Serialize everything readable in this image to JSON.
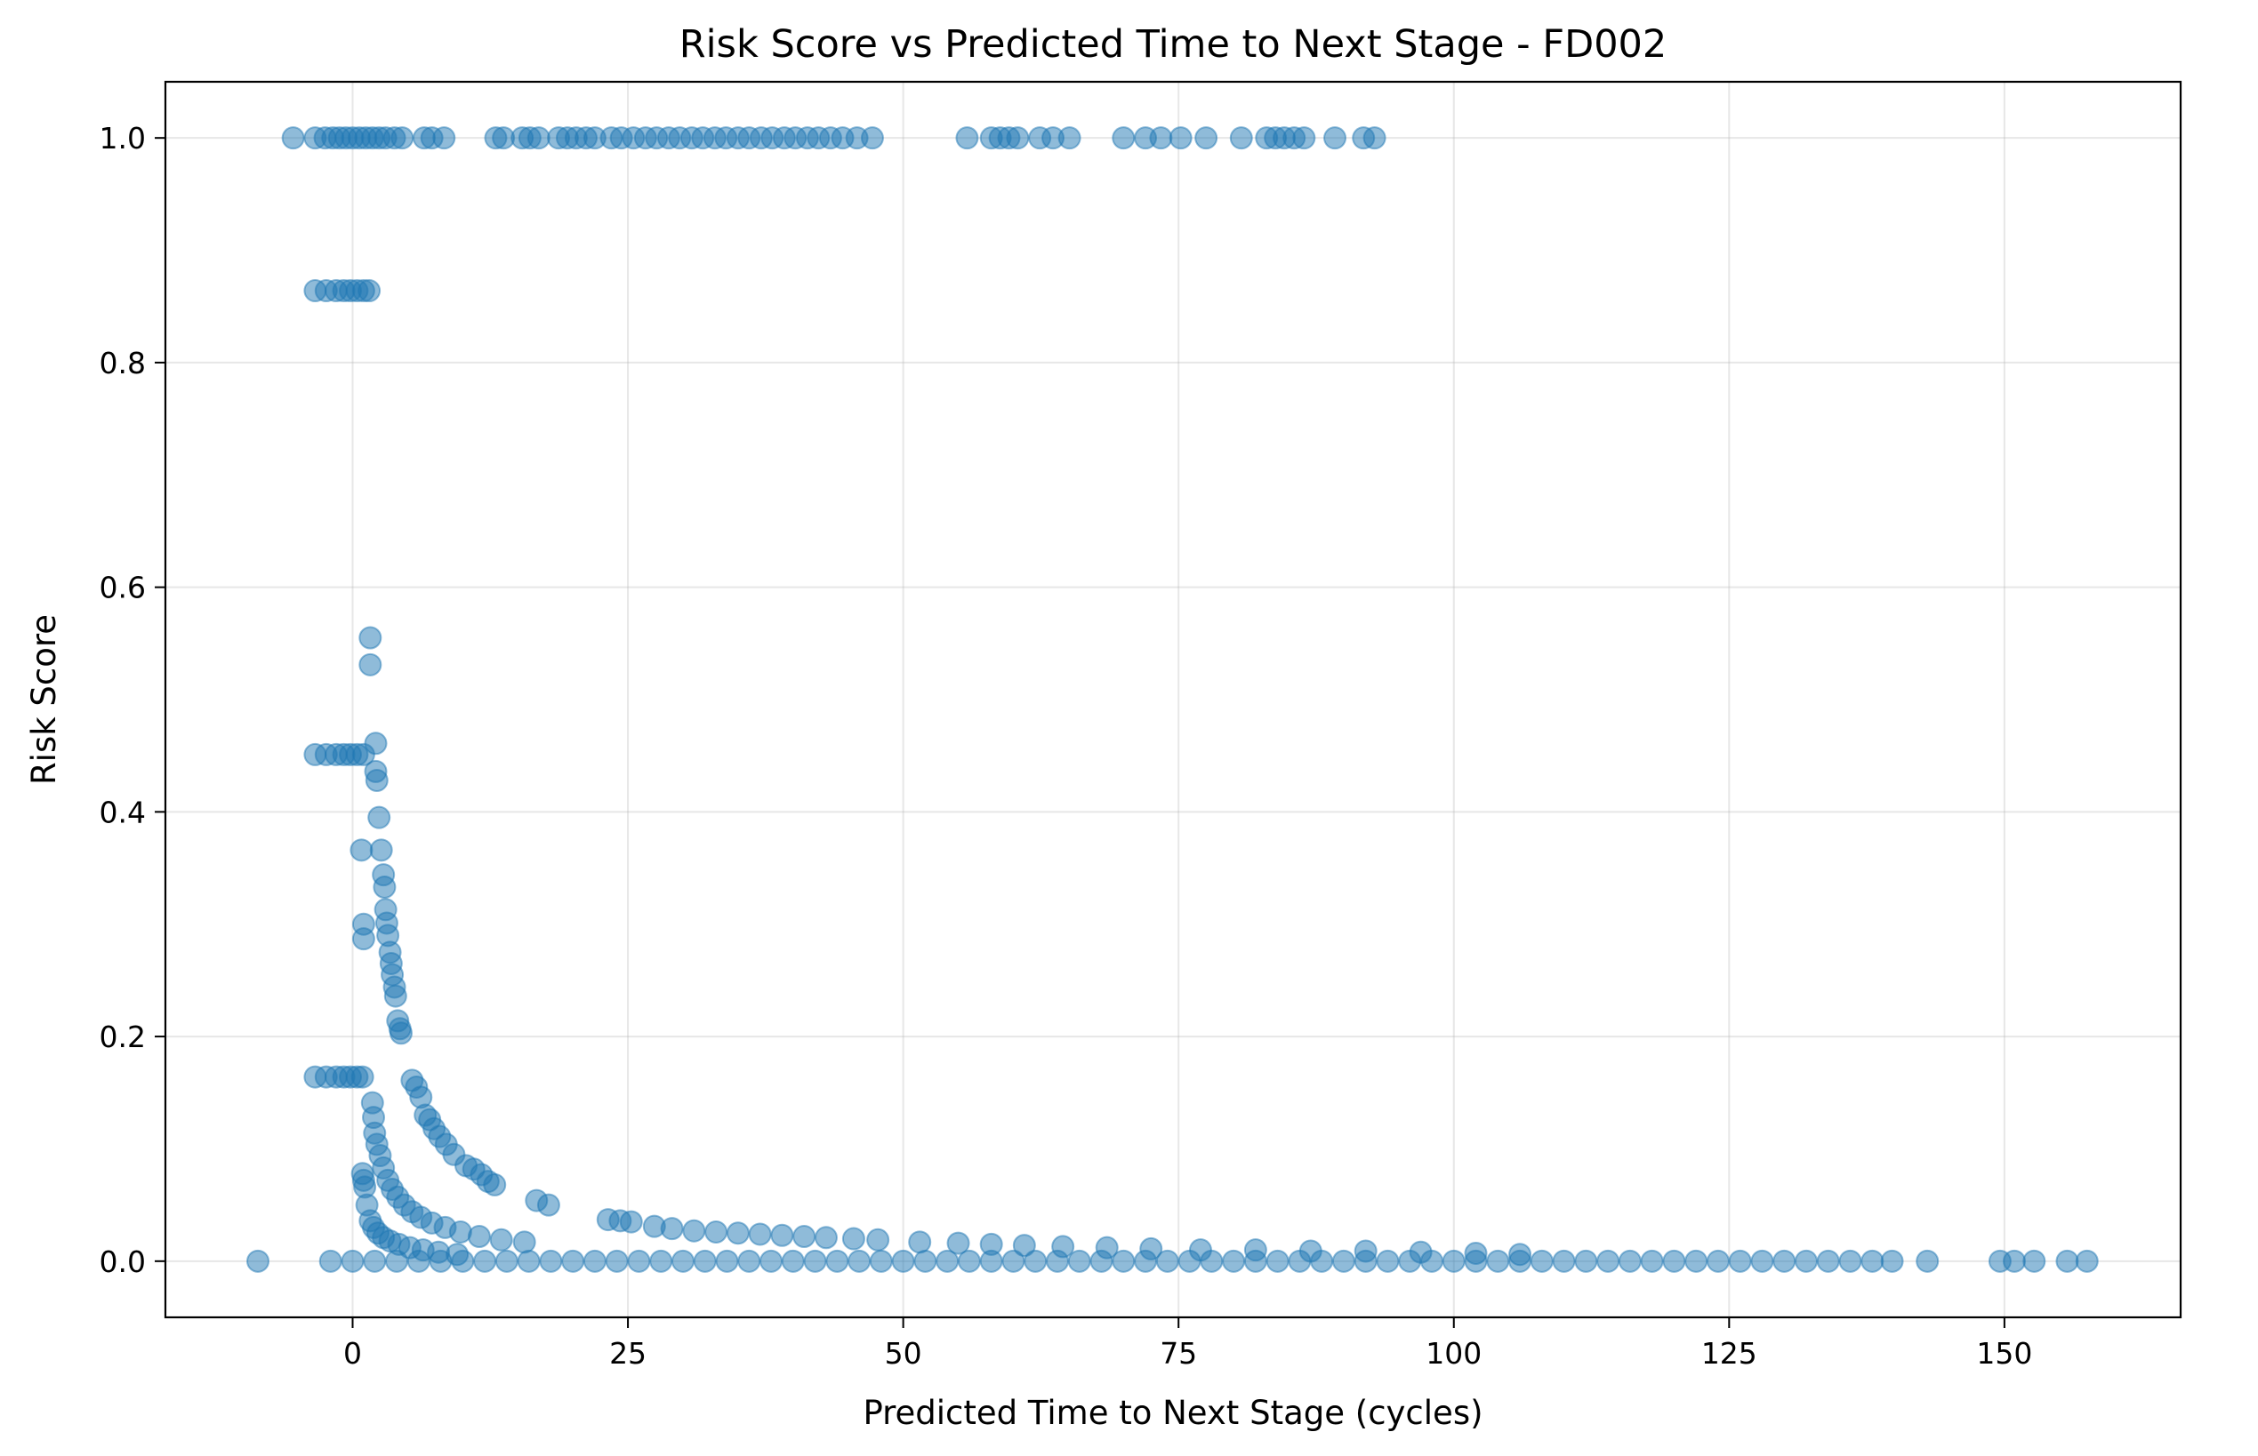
{
  "chart_data": {
    "type": "scatter",
    "title": "Risk Score vs Predicted Time to Next Stage - FD002",
    "xlabel": "Predicted Time to Next Stage (cycles)",
    "ylabel": "Risk Score",
    "xlim": [
      -17,
      166
    ],
    "ylim": [
      -0.05,
      1.05
    ],
    "xticks": [
      0,
      25,
      50,
      75,
      100,
      125,
      150
    ],
    "xtick_labels": [
      "0",
      "25",
      "50",
      "75",
      "100",
      "125",
      "150"
    ],
    "yticks": [
      0.0,
      0.2,
      0.4,
      0.6,
      0.8,
      1.0
    ],
    "ytick_labels": [
      "0.0",
      "0.2",
      "0.4",
      "0.6",
      "0.8",
      "1.0"
    ],
    "grid": true,
    "color": "#1f77b4",
    "point_alpha": 0.5,
    "series": [
      {
        "points": [
          {
            "x": -5.4,
            "y": 1.0
          },
          {
            "x": -3.4,
            "y": 1.0
          },
          {
            "x": -2.5,
            "y": 1.0
          },
          {
            "x": -1.8,
            "y": 1.0
          },
          {
            "x": -1.2,
            "y": 1.0
          },
          {
            "x": -0.6,
            "y": 1.0
          },
          {
            "x": 0.0,
            "y": 1.0
          },
          {
            "x": 0.6,
            "y": 1.0
          },
          {
            "x": 1.2,
            "y": 1.0
          },
          {
            "x": 1.8,
            "y": 1.0
          },
          {
            "x": 2.4,
            "y": 1.0
          },
          {
            "x": 3.0,
            "y": 1.0
          },
          {
            "x": 3.8,
            "y": 1.0
          },
          {
            "x": 4.5,
            "y": 1.0
          },
          {
            "x": 6.5,
            "y": 1.0
          },
          {
            "x": 7.2,
            "y": 1.0
          },
          {
            "x": 8.3,
            "y": 1.0
          },
          {
            "x": 13.0,
            "y": 1.0
          },
          {
            "x": 13.7,
            "y": 1.0
          },
          {
            "x": 15.4,
            "y": 1.0
          },
          {
            "x": 16.1,
            "y": 1.0
          },
          {
            "x": 16.9,
            "y": 1.0
          },
          {
            "x": 18.7,
            "y": 1.0
          },
          {
            "x": 19.5,
            "y": 1.0
          },
          {
            "x": 20.3,
            "y": 1.0
          },
          {
            "x": 21.2,
            "y": 1.0
          },
          {
            "x": 22.0,
            "y": 1.0
          },
          {
            "x": 23.5,
            "y": 1.0
          },
          {
            "x": 24.4,
            "y": 1.0
          },
          {
            "x": 25.5,
            "y": 1.0
          },
          {
            "x": 26.6,
            "y": 1.0
          },
          {
            "x": 27.6,
            "y": 1.0
          },
          {
            "x": 28.7,
            "y": 1.0
          },
          {
            "x": 29.7,
            "y": 1.0
          },
          {
            "x": 30.8,
            "y": 1.0
          },
          {
            "x": 31.8,
            "y": 1.0
          },
          {
            "x": 32.9,
            "y": 1.0
          },
          {
            "x": 33.9,
            "y": 1.0
          },
          {
            "x": 35.0,
            "y": 1.0
          },
          {
            "x": 36.0,
            "y": 1.0
          },
          {
            "x": 37.1,
            "y": 1.0
          },
          {
            "x": 38.1,
            "y": 1.0
          },
          {
            "x": 39.2,
            "y": 1.0
          },
          {
            "x": 40.2,
            "y": 1.0
          },
          {
            "x": 41.3,
            "y": 1.0
          },
          {
            "x": 42.3,
            "y": 1.0
          },
          {
            "x": 43.4,
            "y": 1.0
          },
          {
            "x": 44.5,
            "y": 1.0
          },
          {
            "x": 45.8,
            "y": 1.0
          },
          {
            "x": 47.2,
            "y": 1.0
          },
          {
            "x": 55.8,
            "y": 1.0
          },
          {
            "x": 58.0,
            "y": 1.0
          },
          {
            "x": 58.8,
            "y": 1.0
          },
          {
            "x": 59.6,
            "y": 1.0
          },
          {
            "x": 60.4,
            "y": 1.0
          },
          {
            "x": 62.4,
            "y": 1.0
          },
          {
            "x": 63.6,
            "y": 1.0
          },
          {
            "x": 65.1,
            "y": 1.0
          },
          {
            "x": 70.0,
            "y": 1.0
          },
          {
            "x": 72.0,
            "y": 1.0
          },
          {
            "x": 73.4,
            "y": 1.0
          },
          {
            "x": 75.2,
            "y": 1.0
          },
          {
            "x": 77.5,
            "y": 1.0
          },
          {
            "x": 80.7,
            "y": 1.0
          },
          {
            "x": 83.0,
            "y": 1.0
          },
          {
            "x": 83.8,
            "y": 1.0
          },
          {
            "x": 84.6,
            "y": 1.0
          },
          {
            "x": 85.5,
            "y": 1.0
          },
          {
            "x": 86.4,
            "y": 1.0
          },
          {
            "x": 89.2,
            "y": 1.0
          },
          {
            "x": 91.8,
            "y": 1.0
          },
          {
            "x": 92.8,
            "y": 1.0
          },
          {
            "x": -3.4,
            "y": 0.864
          },
          {
            "x": -2.4,
            "y": 0.864
          },
          {
            "x": -1.5,
            "y": 0.864
          },
          {
            "x": -0.8,
            "y": 0.864
          },
          {
            "x": -0.2,
            "y": 0.864
          },
          {
            "x": 0.4,
            "y": 0.864
          },
          {
            "x": 1.0,
            "y": 0.864
          },
          {
            "x": 1.5,
            "y": 0.864
          },
          {
            "x": -3.4,
            "y": 0.451
          },
          {
            "x": -2.4,
            "y": 0.451
          },
          {
            "x": -1.5,
            "y": 0.451
          },
          {
            "x": -0.8,
            "y": 0.451
          },
          {
            "x": -0.2,
            "y": 0.451
          },
          {
            "x": 0.4,
            "y": 0.451
          },
          {
            "x": 1.0,
            "y": 0.451
          },
          {
            "x": -3.4,
            "y": 0.164
          },
          {
            "x": -2.4,
            "y": 0.164
          },
          {
            "x": -1.5,
            "y": 0.164
          },
          {
            "x": -0.8,
            "y": 0.164
          },
          {
            "x": -0.2,
            "y": 0.164
          },
          {
            "x": 0.4,
            "y": 0.164
          },
          {
            "x": 0.9,
            "y": 0.164
          },
          {
            "x": 1.6,
            "y": 0.555
          },
          {
            "x": 1.6,
            "y": 0.531
          },
          {
            "x": 2.1,
            "y": 0.461
          },
          {
            "x": 2.1,
            "y": 0.436
          },
          {
            "x": 2.2,
            "y": 0.428
          },
          {
            "x": 2.4,
            "y": 0.395
          },
          {
            "x": 2.6,
            "y": 0.366
          },
          {
            "x": 0.8,
            "y": 0.366
          },
          {
            "x": 2.8,
            "y": 0.344
          },
          {
            "x": 2.9,
            "y": 0.333
          },
          {
            "x": 3.0,
            "y": 0.313
          },
          {
            "x": 3.1,
            "y": 0.301
          },
          {
            "x": 1.0,
            "y": 0.3
          },
          {
            "x": 3.2,
            "y": 0.29
          },
          {
            "x": 1.0,
            "y": 0.287
          },
          {
            "x": 3.4,
            "y": 0.275
          },
          {
            "x": 3.5,
            "y": 0.265
          },
          {
            "x": 3.6,
            "y": 0.255
          },
          {
            "x": 3.8,
            "y": 0.244
          },
          {
            "x": 3.9,
            "y": 0.236
          },
          {
            "x": 4.1,
            "y": 0.214
          },
          {
            "x": 4.3,
            "y": 0.207
          },
          {
            "x": 4.4,
            "y": 0.203
          },
          {
            "x": 5.4,
            "y": 0.161
          },
          {
            "x": 5.8,
            "y": 0.155
          },
          {
            "x": 6.2,
            "y": 0.146
          },
          {
            "x": 6.6,
            "y": 0.13
          },
          {
            "x": 7.0,
            "y": 0.126
          },
          {
            "x": 7.4,
            "y": 0.118
          },
          {
            "x": 7.9,
            "y": 0.111
          },
          {
            "x": 8.5,
            "y": 0.104
          },
          {
            "x": 9.2,
            "y": 0.095
          },
          {
            "x": 10.3,
            "y": 0.085
          },
          {
            "x": 11.0,
            "y": 0.082
          },
          {
            "x": 11.7,
            "y": 0.077
          },
          {
            "x": 12.3,
            "y": 0.071
          },
          {
            "x": 12.9,
            "y": 0.068
          },
          {
            "x": 1.8,
            "y": 0.141
          },
          {
            "x": 1.9,
            "y": 0.128
          },
          {
            "x": 2.0,
            "y": 0.114
          },
          {
            "x": 2.2,
            "y": 0.104
          },
          {
            "x": 2.5,
            "y": 0.094
          },
          {
            "x": 2.8,
            "y": 0.083
          },
          {
            "x": 3.2,
            "y": 0.072
          },
          {
            "x": 3.6,
            "y": 0.064
          },
          {
            "x": 4.1,
            "y": 0.057
          },
          {
            "x": 4.7,
            "y": 0.05
          },
          {
            "x": 5.4,
            "y": 0.044
          },
          {
            "x": 6.2,
            "y": 0.039
          },
          {
            "x": 7.2,
            "y": 0.034
          },
          {
            "x": 8.4,
            "y": 0.03
          },
          {
            "x": 9.8,
            "y": 0.026
          },
          {
            "x": 11.5,
            "y": 0.022
          },
          {
            "x": 13.5,
            "y": 0.019
          },
          {
            "x": 15.6,
            "y": 0.017
          },
          {
            "x": 0.9,
            "y": 0.078
          },
          {
            "x": 1.0,
            "y": 0.072
          },
          {
            "x": 1.1,
            "y": 0.066
          },
          {
            "x": 1.3,
            "y": 0.05
          },
          {
            "x": 1.6,
            "y": 0.036
          },
          {
            "x": 1.9,
            "y": 0.03
          },
          {
            "x": 2.3,
            "y": 0.025
          },
          {
            "x": 2.8,
            "y": 0.021
          },
          {
            "x": 3.4,
            "y": 0.018
          },
          {
            "x": 4.2,
            "y": 0.015
          },
          {
            "x": 5.2,
            "y": 0.012
          },
          {
            "x": 6.4,
            "y": 0.01
          },
          {
            "x": 7.8,
            "y": 0.008
          },
          {
            "x": 9.5,
            "y": 0.006
          },
          {
            "x": 16.7,
            "y": 0.054
          },
          {
            "x": 17.8,
            "y": 0.05
          },
          {
            "x": 23.2,
            "y": 0.037
          },
          {
            "x": 24.3,
            "y": 0.036
          },
          {
            "x": 25.3,
            "y": 0.035
          },
          {
            "x": 27.4,
            "y": 0.031
          },
          {
            "x": 29.0,
            "y": 0.029
          },
          {
            "x": 31.0,
            "y": 0.027
          },
          {
            "x": 33.0,
            "y": 0.026
          },
          {
            "x": 35.0,
            "y": 0.025
          },
          {
            "x": 37.0,
            "y": 0.024
          },
          {
            "x": 39.0,
            "y": 0.023
          },
          {
            "x": 41.0,
            "y": 0.022
          },
          {
            "x": 43.0,
            "y": 0.021
          },
          {
            "x": 45.5,
            "y": 0.02
          },
          {
            "x": 47.7,
            "y": 0.019
          },
          {
            "x": 51.5,
            "y": 0.017
          },
          {
            "x": 55.0,
            "y": 0.016
          },
          {
            "x": 58.0,
            "y": 0.015
          },
          {
            "x": 61.0,
            "y": 0.014
          },
          {
            "x": 64.5,
            "y": 0.013
          },
          {
            "x": 68.5,
            "y": 0.012
          },
          {
            "x": 72.5,
            "y": 0.011
          },
          {
            "x": 77.0,
            "y": 0.01
          },
          {
            "x": 82.0,
            "y": 0.01
          },
          {
            "x": 87.0,
            "y": 0.009
          },
          {
            "x": 92.0,
            "y": 0.009
          },
          {
            "x": 97.0,
            "y": 0.008
          },
          {
            "x": 102.0,
            "y": 0.007
          },
          {
            "x": 106.0,
            "y": 0.006
          },
          {
            "x": -8.6,
            "y": 0.0
          },
          {
            "x": -2.0,
            "y": 0.0
          },
          {
            "x": 0.0,
            "y": 0.0
          },
          {
            "x": 2.0,
            "y": 0.0
          },
          {
            "x": 4.0,
            "y": 0.0
          },
          {
            "x": 6.0,
            "y": 0.0
          },
          {
            "x": 8.0,
            "y": 0.0
          },
          {
            "x": 10.0,
            "y": 0.0
          },
          {
            "x": 12.0,
            "y": 0.0
          },
          {
            "x": 14.0,
            "y": 0.0
          },
          {
            "x": 16.0,
            "y": 0.0
          },
          {
            "x": 18.0,
            "y": 0.0
          },
          {
            "x": 20.0,
            "y": 0.0
          },
          {
            "x": 22.0,
            "y": 0.0
          },
          {
            "x": 24.0,
            "y": 0.0
          },
          {
            "x": 26.0,
            "y": 0.0
          },
          {
            "x": 28.0,
            "y": 0.0
          },
          {
            "x": 30.0,
            "y": 0.0
          },
          {
            "x": 32.0,
            "y": 0.0
          },
          {
            "x": 34.0,
            "y": 0.0
          },
          {
            "x": 36.0,
            "y": 0.0
          },
          {
            "x": 38.0,
            "y": 0.0
          },
          {
            "x": 40.0,
            "y": 0.0
          },
          {
            "x": 42.0,
            "y": 0.0
          },
          {
            "x": 44.0,
            "y": 0.0
          },
          {
            "x": 46.0,
            "y": 0.0
          },
          {
            "x": 48.0,
            "y": 0.0
          },
          {
            "x": 50.0,
            "y": 0.0
          },
          {
            "x": 52.0,
            "y": 0.0
          },
          {
            "x": 54.0,
            "y": 0.0
          },
          {
            "x": 56.0,
            "y": 0.0
          },
          {
            "x": 58.0,
            "y": 0.0
          },
          {
            "x": 60.0,
            "y": 0.0
          },
          {
            "x": 62.0,
            "y": 0.0
          },
          {
            "x": 64.0,
            "y": 0.0
          },
          {
            "x": 66.0,
            "y": 0.0
          },
          {
            "x": 68.0,
            "y": 0.0
          },
          {
            "x": 70.0,
            "y": 0.0
          },
          {
            "x": 72.0,
            "y": 0.0
          },
          {
            "x": 74.0,
            "y": 0.0
          },
          {
            "x": 76.0,
            "y": 0.0
          },
          {
            "x": 78.0,
            "y": 0.0
          },
          {
            "x": 80.0,
            "y": 0.0
          },
          {
            "x": 82.0,
            "y": 0.0
          },
          {
            "x": 84.0,
            "y": 0.0
          },
          {
            "x": 86.0,
            "y": 0.0
          },
          {
            "x": 88.0,
            "y": 0.0
          },
          {
            "x": 90.0,
            "y": 0.0
          },
          {
            "x": 92.0,
            "y": 0.0
          },
          {
            "x": 94.0,
            "y": 0.0
          },
          {
            "x": 96.0,
            "y": 0.0
          },
          {
            "x": 98.0,
            "y": 0.0
          },
          {
            "x": 100.0,
            "y": 0.0
          },
          {
            "x": 102.0,
            "y": 0.0
          },
          {
            "x": 104.0,
            "y": 0.0
          },
          {
            "x": 106.0,
            "y": 0.0
          },
          {
            "x": 108.0,
            "y": 0.0
          },
          {
            "x": 110.0,
            "y": 0.0
          },
          {
            "x": 112.0,
            "y": 0.0
          },
          {
            "x": 114.0,
            "y": 0.0
          },
          {
            "x": 116.0,
            "y": 0.0
          },
          {
            "x": 118.0,
            "y": 0.0
          },
          {
            "x": 120.0,
            "y": 0.0
          },
          {
            "x": 122.0,
            "y": 0.0
          },
          {
            "x": 124.0,
            "y": 0.0
          },
          {
            "x": 126.0,
            "y": 0.0
          },
          {
            "x": 128.0,
            "y": 0.0
          },
          {
            "x": 130.0,
            "y": 0.0
          },
          {
            "x": 132.0,
            "y": 0.0
          },
          {
            "x": 134.0,
            "y": 0.0
          },
          {
            "x": 136.0,
            "y": 0.0
          },
          {
            "x": 138.0,
            "y": 0.0
          },
          {
            "x": 139.8,
            "y": 0.0
          },
          {
            "x": 143.0,
            "y": 0.0
          },
          {
            "x": 149.6,
            "y": 0.0
          },
          {
            "x": 150.9,
            "y": 0.0
          },
          {
            "x": 152.7,
            "y": 0.0
          },
          {
            "x": 155.7,
            "y": 0.0
          },
          {
            "x": 157.5,
            "y": 0.0
          }
        ]
      }
    ]
  }
}
